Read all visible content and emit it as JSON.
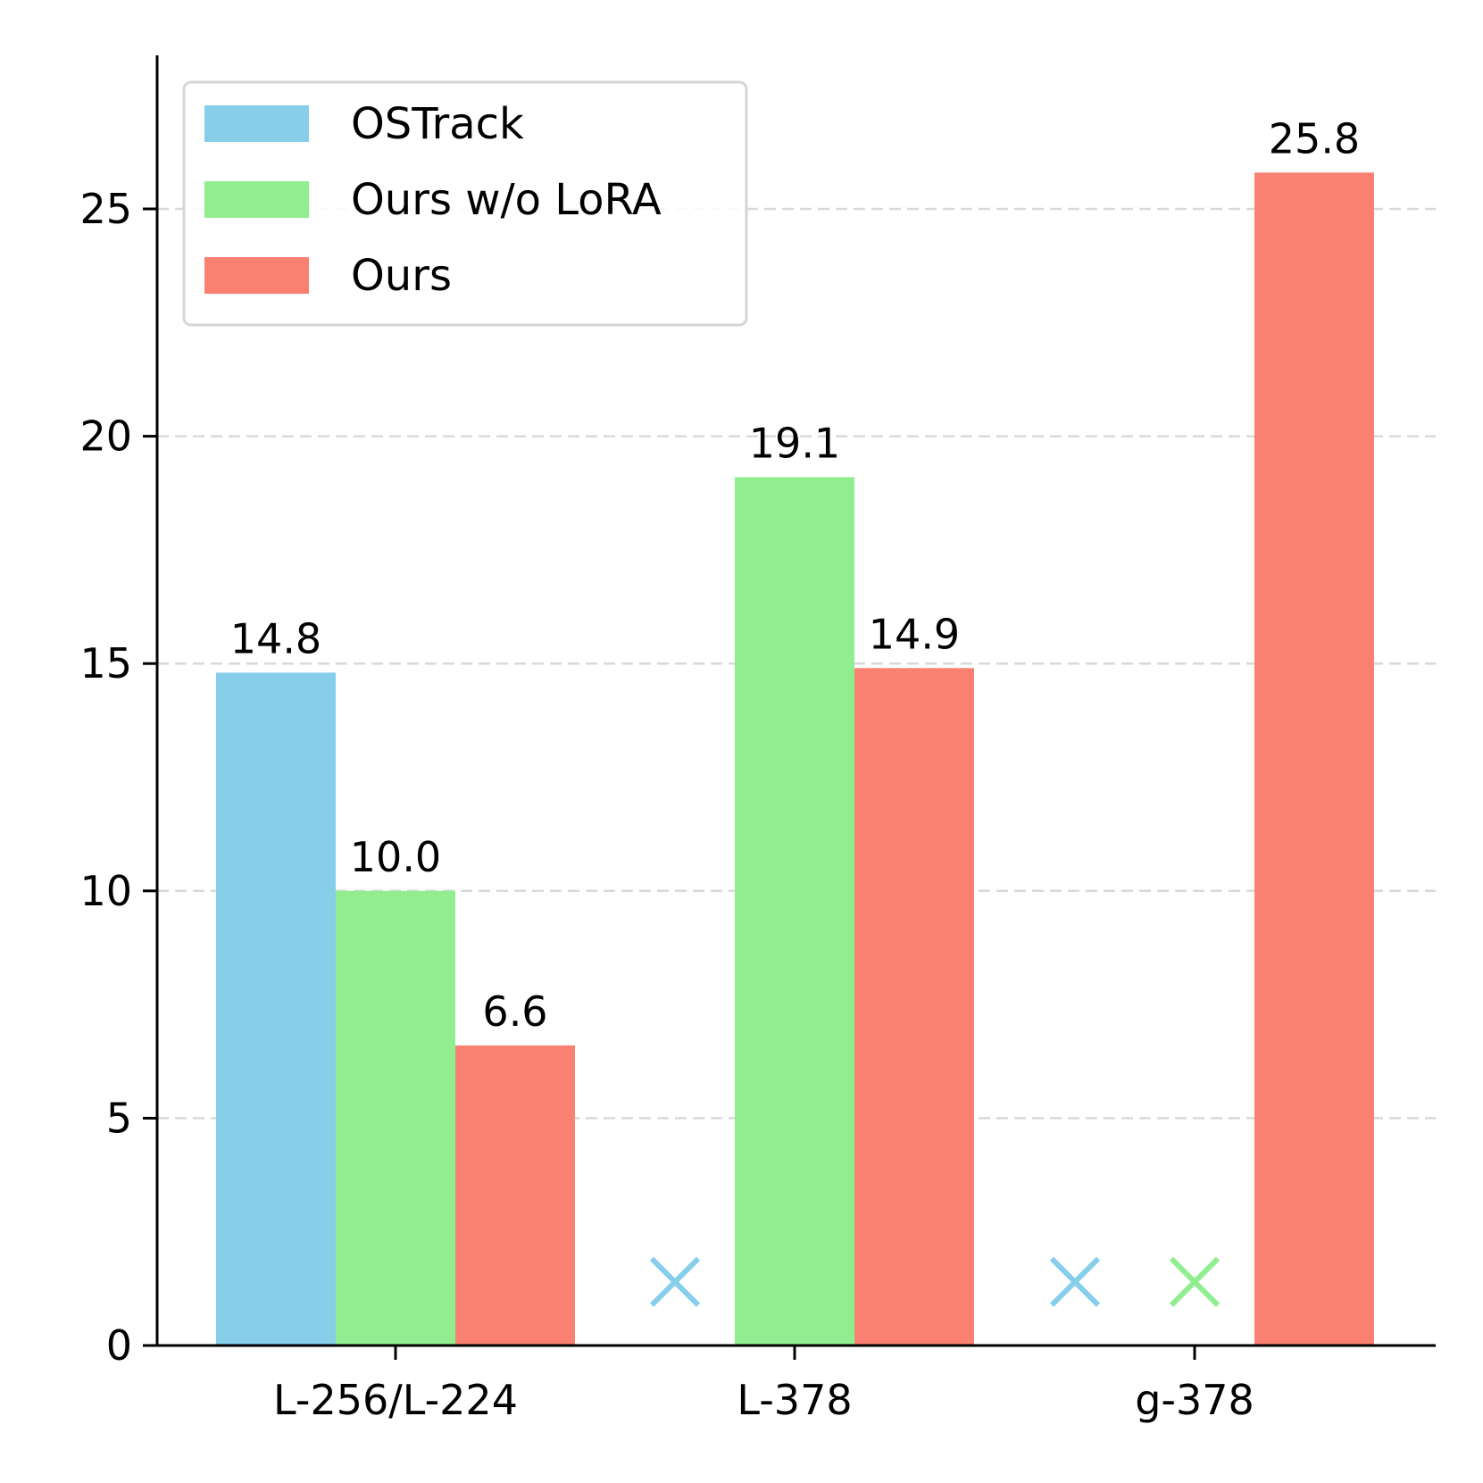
{
  "chart_data": {
    "type": "bar",
    "title": "",
    "xlabel": "",
    "ylabel": "",
    "categories": [
      "L-256/L-224",
      "L-378",
      "g-378"
    ],
    "ylim": [
      0,
      28.4
    ],
    "yticks": [
      0,
      5,
      10,
      15,
      20,
      25
    ],
    "grid": "y-dashed",
    "legend_position": "top-left",
    "series": [
      {
        "name": "OSTrack",
        "color": "#87CEEB",
        "values": [
          14.8,
          null,
          null
        ],
        "labels": [
          "14.8",
          null,
          null
        ]
      },
      {
        "name": "Ours w/o LoRA",
        "color": "#90EE90",
        "values": [
          10.0,
          19.1,
          null
        ],
        "labels": [
          "10.0",
          "19.1",
          null
        ]
      },
      {
        "name": "Ours",
        "color": "#FA8072",
        "values": [
          6.6,
          14.9,
          25.8
        ],
        "labels": [
          "6.6",
          "14.9",
          "25.8"
        ]
      }
    ],
    "missing_marker": "×",
    "missing_marker_value": 1.4
  }
}
